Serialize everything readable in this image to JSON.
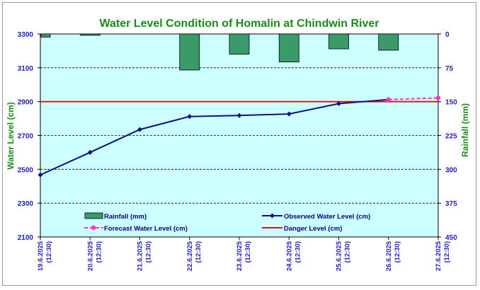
{
  "chart_data": {
    "type": "combo",
    "title": "Water Level Condition of Homalin at Chindwin River",
    "ylabel_left": "Water Level (cm)",
    "ylabel_right": "Rainfall (mm)",
    "left_axis": {
      "min": 2100,
      "max": 3300,
      "ticks": [
        "3300",
        "3100",
        "2900",
        "2700",
        "2500",
        "2300",
        "2100"
      ]
    },
    "right_axis": {
      "min": 0,
      "max": 450,
      "inverted": true,
      "ticks": [
        "0",
        "75",
        "150",
        "225",
        "300",
        "375",
        "450"
      ]
    },
    "categories": [
      {
        "date": "19.6.2025",
        "time": "(12:30)"
      },
      {
        "date": "20.6.2025",
        "time": "(12:30)"
      },
      {
        "date": "21.6.2025",
        "time": "(12:30)"
      },
      {
        "date": "22.6.2025",
        "time": "(12:30)"
      },
      {
        "date": "23.6.2025",
        "time": "(12:30)"
      },
      {
        "date": "24.6.2025",
        "time": "(12:30)"
      },
      {
        "date": "25.6.2025",
        "time": "(12:30)"
      },
      {
        "date": "26.6.2025",
        "time": "(12:30)"
      },
      {
        "date": "27.6.2025",
        "time": "(12:30)"
      }
    ],
    "series": [
      {
        "name": "Rainfall (mm)",
        "kind": "bar",
        "axis": "right",
        "color": "#3a9a6a",
        "values": [
          7,
          3,
          null,
          80,
          45,
          62,
          33,
          36,
          null
        ]
      },
      {
        "name": "Observed Water Level (cm)",
        "kind": "line",
        "axis": "left",
        "color": "#101080",
        "values": [
          2467,
          2600,
          2735,
          2812,
          2818,
          2827,
          2888,
          2912,
          null
        ]
      },
      {
        "name": "Forecast Water Level (cm)",
        "kind": "line-dashed",
        "axis": "left",
        "color": "#ff33cc",
        "values": [
          null,
          null,
          null,
          null,
          null,
          null,
          null,
          2912,
          2922
        ]
      },
      {
        "name": "Danger Level (cm)",
        "kind": "hline",
        "axis": "left",
        "color": "#e01010",
        "value": 2900
      }
    ],
    "plot_background": "#ccffff",
    "grid": "horizontal-dashed",
    "legend_position": "inside-bottom"
  }
}
